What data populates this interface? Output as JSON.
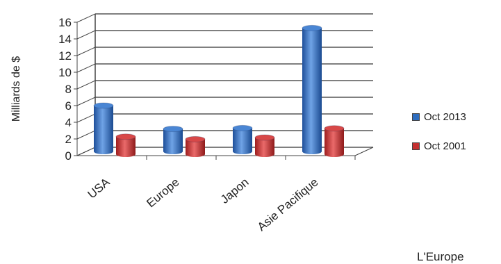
{
  "chart_data": {
    "type": "bar",
    "ylabel": "Milliards de $",
    "ylim": [
      0,
      16
    ],
    "yticks": [
      "0",
      "2",
      "4",
      "6",
      "8",
      "10",
      "12",
      "14",
      "16"
    ],
    "categories": [
      "USA",
      "Europe",
      "Japon",
      "Asie Pacifique"
    ],
    "series": [
      {
        "name": "Oct 2013",
        "color": "#2E6DBF",
        "values": [
          5.5,
          2.7,
          2.8,
          14.8
        ]
      },
      {
        "name": "Oct 2001",
        "color": "#C43030",
        "values": [
          2.1,
          1.8,
          2.0,
          3.1
        ]
      }
    ],
    "grid": true,
    "legend_position": "right"
  },
  "footer": {
    "partial_text": "L'Europe"
  }
}
